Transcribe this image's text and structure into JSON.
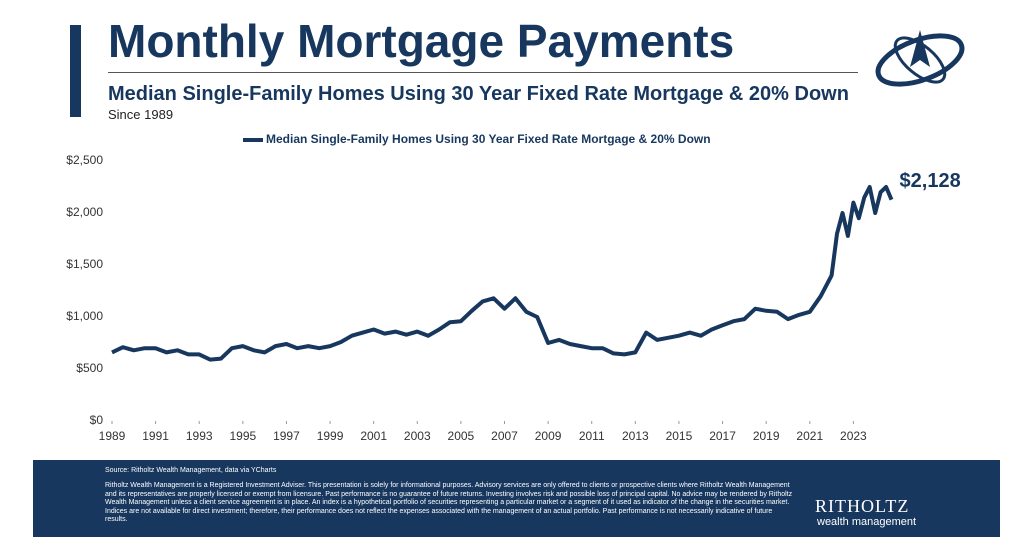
{
  "chart_data": {
    "type": "line",
    "title": "Monthly Mortgage Payments",
    "subtitle": "Median Single-Family Homes Using 30 Year Fixed Rate Mortgage & 20% Down",
    "note": "Since 1989",
    "annotation": "$2,128",
    "x": [
      1989,
      1989.5,
      1990,
      1990.5,
      1991,
      1991.5,
      1992,
      1992.5,
      1993,
      1993.5,
      1994,
      1994.5,
      1995,
      1995.5,
      1996,
      1996.5,
      1997,
      1997.5,
      1998,
      1998.5,
      1999,
      1999.5,
      2000,
      2000.5,
      2001,
      2001.5,
      2002,
      2002.5,
      2003,
      2003.5,
      2004,
      2004.5,
      2005,
      2005.5,
      2006,
      2006.5,
      2007,
      2007.5,
      2008,
      2008.5,
      2009,
      2009.5,
      2010,
      2010.5,
      2011,
      2011.5,
      2012,
      2012.5,
      2013,
      2013.5,
      2014,
      2014.5,
      2015,
      2015.5,
      2016,
      2016.5,
      2017,
      2017.5,
      2018,
      2018.5,
      2019,
      2019.5,
      2020,
      2020.5,
      2021,
      2021.5,
      2022,
      2022.25,
      2022.5,
      2022.75,
      2023,
      2023.25,
      2023.5,
      2023.75,
      2024,
      2024.25,
      2024.5,
      2024.75
    ],
    "series": [
      {
        "name": "Median Single-Family Homes Using 30 Year Fixed Rate Mortgage & 20% Down",
        "color": "#17375e",
        "values": [
          660,
          710,
          680,
          700,
          700,
          660,
          680,
          640,
          640,
          590,
          600,
          700,
          720,
          680,
          660,
          720,
          740,
          700,
          720,
          700,
          720,
          760,
          820,
          850,
          880,
          840,
          860,
          830,
          860,
          820,
          880,
          950,
          960,
          1060,
          1150,
          1180,
          1080,
          1180,
          1050,
          1000,
          750,
          780,
          740,
          720,
          700,
          700,
          650,
          640,
          660,
          850,
          780,
          800,
          820,
          850,
          820,
          880,
          920,
          960,
          980,
          1080,
          1060,
          1050,
          980,
          1020,
          1050,
          1200,
          1400,
          1800,
          2000,
          1780,
          2100,
          1950,
          2150,
          2250,
          2000,
          2200,
          2250,
          2128
        ]
      }
    ],
    "xlim": [
      1989,
      2025
    ],
    "xticks": [
      1989,
      1991,
      1993,
      1995,
      1997,
      1999,
      2001,
      2003,
      2005,
      2007,
      2009,
      2011,
      2013,
      2015,
      2017,
      2019,
      2021,
      2023
    ],
    "ylim": [
      0,
      2500
    ],
    "yticks": [
      {
        "value": 0,
        "label": "$0"
      },
      {
        "value": 500,
        "label": "$500"
      },
      {
        "value": 1000,
        "label": "$1,000"
      },
      {
        "value": 1500,
        "label": "$1,500"
      },
      {
        "value": 2000,
        "label": "$2,000"
      },
      {
        "value": 2500,
        "label": "$2,500"
      }
    ],
    "grid": false
  },
  "footer": {
    "source": "Source: Ritholtz Wealth Management, data via YCharts",
    "disclaimer": "Ritholtz Wealth Management is a Registered Investment Adviser. This presentation is solely for informational purposes. Advisory services are only offered to clients or prospective clients where Ritholtz Wealth Management and its representatives are properly licensed or exempt from licensure. Past performance is no guarantee of future returns. Investing involves risk and possible loss of principal capital. No advice may be rendered by Ritholtz Wealth Management unless a client service agreement is in place. An index is a hypothetical portfolio of securities representing a particular market or a segment of it used as indicator of the change in the securities market. Indices are not available for direct investment; therefore, their performance does not reflect the expenses associated with the management of an actual portfolio. Past performance is not necessarily indicative of future results.",
    "logo_name": "RITHOLTZ",
    "logo_tagline": "wealth management"
  }
}
